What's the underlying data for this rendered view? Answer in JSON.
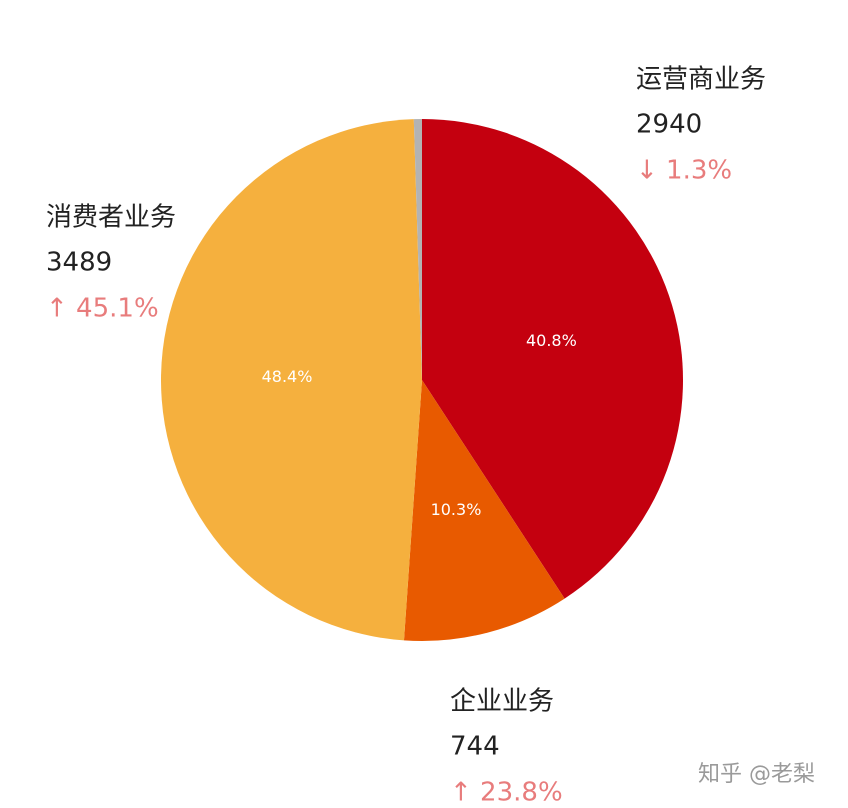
{
  "chart_data": {
    "type": "pie",
    "categories": [
      "运营商业务",
      "企业业务",
      "消费者业务",
      null
    ],
    "values": [
      40.8,
      10.3,
      48.4,
      0.5
    ],
    "value_labels": [
      "40.8%",
      "10.3%",
      "48.4%",
      null
    ],
    "amounts": [
      2940,
      744,
      3489,
      null
    ],
    "changes": [
      "↓ 1.3%",
      "↑ 23.8%",
      "↑ 45.1%",
      null
    ],
    "colors": [
      "#c4000f",
      "#e85a00",
      "#f5b03e",
      "#b3b3b3"
    ]
  },
  "watermark": "知乎 @老梨"
}
